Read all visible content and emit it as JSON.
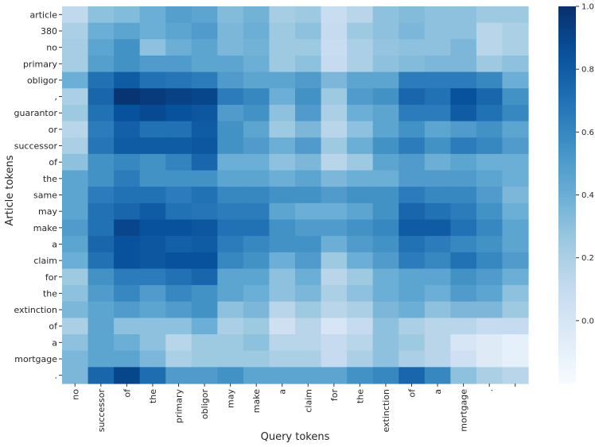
{
  "chart_data": {
    "type": "heatmap",
    "xlabel": "Query tokens",
    "ylabel": "Article tokens",
    "x_tokens": [
      "no",
      "successor",
      "of",
      "the",
      "primary",
      "obligor",
      "may",
      "make",
      "a",
      "claim",
      "for",
      "the",
      "extinction",
      "of",
      "a",
      "mortgage",
      ".",
      ""
    ],
    "y_tokens": [
      "article",
      "380",
      "no",
      "primary",
      "obligor",
      ",",
      "guarantor",
      "or",
      "successor",
      "of",
      "the",
      "same",
      "may",
      "make",
      "a",
      "claim",
      "for",
      "the",
      "extinction",
      "of",
      "a",
      "mortgage",
      "."
    ],
    "colorbar": {
      "ticks": [
        0.0,
        0.2,
        0.4,
        0.6,
        0.8,
        1.0
      ],
      "min": -0.2,
      "max": 1.0,
      "colormap": "Blues"
    },
    "values": [
      [
        0.12,
        0.3,
        0.33,
        0.4,
        0.48,
        0.45,
        0.33,
        0.38,
        0.22,
        0.25,
        0.08,
        0.15,
        0.3,
        0.33,
        0.3,
        0.3,
        0.25,
        0.25
      ],
      [
        0.2,
        0.4,
        0.45,
        0.4,
        0.45,
        0.5,
        0.35,
        0.4,
        0.25,
        0.3,
        0.1,
        0.25,
        0.3,
        0.35,
        0.3,
        0.3,
        0.15,
        0.2
      ],
      [
        0.22,
        0.45,
        0.55,
        0.3,
        0.4,
        0.45,
        0.35,
        0.38,
        0.25,
        0.25,
        0.08,
        0.2,
        0.28,
        0.3,
        0.3,
        0.35,
        0.15,
        0.2
      ],
      [
        0.22,
        0.48,
        0.55,
        0.5,
        0.5,
        0.45,
        0.45,
        0.4,
        0.25,
        0.3,
        0.1,
        0.2,
        0.3,
        0.33,
        0.35,
        0.35,
        0.25,
        0.3
      ],
      [
        0.4,
        0.7,
        0.8,
        0.7,
        0.68,
        0.65,
        0.5,
        0.45,
        0.45,
        0.5,
        0.35,
        0.45,
        0.45,
        0.65,
        0.65,
        0.65,
        0.6,
        0.4
      ],
      [
        0.2,
        0.75,
        0.98,
        0.95,
        0.92,
        0.9,
        0.65,
        0.6,
        0.4,
        0.55,
        0.25,
        0.5,
        0.55,
        0.75,
        0.7,
        0.85,
        0.75,
        0.55
      ],
      [
        0.25,
        0.7,
        0.85,
        0.88,
        0.85,
        0.82,
        0.5,
        0.55,
        0.3,
        0.5,
        0.2,
        0.4,
        0.45,
        0.65,
        0.65,
        0.8,
        0.7,
        0.6
      ],
      [
        0.15,
        0.65,
        0.78,
        0.7,
        0.7,
        0.8,
        0.55,
        0.45,
        0.25,
        0.35,
        0.15,
        0.3,
        0.45,
        0.55,
        0.45,
        0.5,
        0.55,
        0.45
      ],
      [
        0.2,
        0.68,
        0.8,
        0.8,
        0.8,
        0.82,
        0.55,
        0.5,
        0.4,
        0.5,
        0.25,
        0.4,
        0.55,
        0.65,
        0.55,
        0.65,
        0.6,
        0.5
      ],
      [
        0.3,
        0.55,
        0.6,
        0.55,
        0.62,
        0.75,
        0.4,
        0.4,
        0.3,
        0.35,
        0.15,
        0.25,
        0.45,
        0.5,
        0.4,
        0.45,
        0.4,
        0.4
      ],
      [
        0.45,
        0.55,
        0.65,
        0.55,
        0.55,
        0.55,
        0.45,
        0.45,
        0.4,
        0.45,
        0.35,
        0.4,
        0.4,
        0.5,
        0.5,
        0.5,
        0.45,
        0.4
      ],
      [
        0.45,
        0.65,
        0.7,
        0.7,
        0.65,
        0.7,
        0.6,
        0.6,
        0.55,
        0.55,
        0.5,
        0.55,
        0.55,
        0.65,
        0.6,
        0.6,
        0.5,
        0.35
      ],
      [
        0.45,
        0.7,
        0.75,
        0.8,
        0.7,
        0.68,
        0.65,
        0.65,
        0.45,
        0.4,
        0.4,
        0.45,
        0.55,
        0.75,
        0.7,
        0.65,
        0.55,
        0.4
      ],
      [
        0.5,
        0.7,
        0.9,
        0.85,
        0.85,
        0.82,
        0.7,
        0.7,
        0.55,
        0.5,
        0.5,
        0.55,
        0.6,
        0.8,
        0.8,
        0.7,
        0.6,
        0.45
      ],
      [
        0.45,
        0.75,
        0.85,
        0.82,
        0.78,
        0.8,
        0.65,
        0.6,
        0.55,
        0.55,
        0.4,
        0.5,
        0.55,
        0.7,
        0.65,
        0.6,
        0.55,
        0.45
      ],
      [
        0.4,
        0.7,
        0.85,
        0.82,
        0.85,
        0.85,
        0.6,
        0.55,
        0.4,
        0.5,
        0.25,
        0.4,
        0.5,
        0.65,
        0.6,
        0.7,
        0.6,
        0.5
      ],
      [
        0.25,
        0.55,
        0.65,
        0.65,
        0.7,
        0.75,
        0.45,
        0.45,
        0.3,
        0.4,
        0.15,
        0.25,
        0.4,
        0.45,
        0.45,
        0.55,
        0.5,
        0.4
      ],
      [
        0.3,
        0.5,
        0.6,
        0.5,
        0.6,
        0.55,
        0.45,
        0.4,
        0.3,
        0.35,
        0.2,
        0.3,
        0.4,
        0.45,
        0.4,
        0.5,
        0.45,
        0.3
      ],
      [
        0.35,
        0.45,
        0.5,
        0.45,
        0.5,
        0.55,
        0.3,
        0.35,
        0.15,
        0.25,
        0.15,
        0.2,
        0.35,
        0.4,
        0.3,
        0.35,
        0.35,
        0.25
      ],
      [
        0.2,
        0.45,
        0.3,
        0.3,
        0.3,
        0.4,
        0.2,
        0.25,
        0.05,
        0.15,
        0.0,
        0.1,
        0.3,
        0.2,
        0.15,
        0.15,
        0.1,
        0.1
      ],
      [
        0.3,
        0.45,
        0.4,
        0.3,
        0.15,
        0.25,
        0.25,
        0.3,
        0.15,
        0.15,
        0.1,
        0.15,
        0.3,
        0.25,
        0.15,
        0.0,
        -0.05,
        -0.1
      ],
      [
        0.35,
        0.45,
        0.45,
        0.35,
        0.2,
        0.25,
        0.25,
        0.25,
        0.2,
        0.2,
        0.1,
        0.2,
        0.3,
        0.2,
        0.15,
        0.05,
        -0.05,
        -0.1
      ],
      [
        0.35,
        0.75,
        0.9,
        0.72,
        0.5,
        0.5,
        0.55,
        0.45,
        0.45,
        0.45,
        0.45,
        0.55,
        0.6,
        0.75,
        0.6,
        0.3,
        0.2,
        0.15
      ]
    ]
  }
}
